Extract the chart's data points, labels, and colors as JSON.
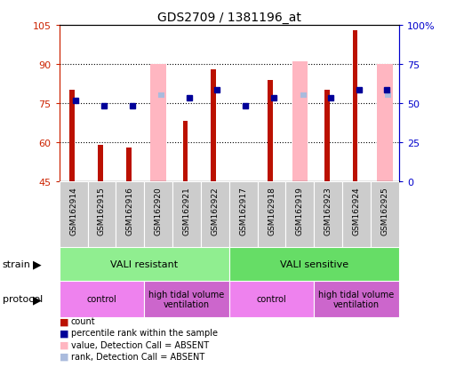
{
  "title": "GDS2709 / 1381196_at",
  "samples": [
    "GSM162914",
    "GSM162915",
    "GSM162916",
    "GSM162920",
    "GSM162921",
    "GSM162922",
    "GSM162917",
    "GSM162918",
    "GSM162919",
    "GSM162923",
    "GSM162924",
    "GSM162925"
  ],
  "count_values": [
    80,
    59,
    58,
    45,
    68,
    88,
    45,
    84,
    45,
    80,
    103,
    45
  ],
  "rank_values": [
    76,
    74,
    74,
    45,
    77,
    80,
    74,
    77,
    45,
    77,
    80,
    80
  ],
  "absent_value_bars": [
    false,
    false,
    false,
    true,
    false,
    false,
    false,
    false,
    true,
    false,
    false,
    true
  ],
  "absent_value_heights": [
    45,
    45,
    45,
    90,
    45,
    45,
    45,
    45,
    91,
    45,
    45,
    90
  ],
  "absent_rank_markers": [
    false,
    false,
    false,
    true,
    false,
    false,
    false,
    false,
    true,
    false,
    false,
    true
  ],
  "absent_rank_values": [
    45,
    45,
    45,
    78,
    45,
    45,
    45,
    45,
    78,
    45,
    45,
    78
  ],
  "ylim": [
    45,
    105
  ],
  "yticks_left": [
    45,
    60,
    75,
    90,
    105
  ],
  "strain_groups": [
    {
      "label": "VALI resistant",
      "start": 0,
      "end": 6,
      "color": "#90EE90"
    },
    {
      "label": "VALI sensitive",
      "start": 6,
      "end": 12,
      "color": "#66DD66"
    }
  ],
  "protocol_groups": [
    {
      "label": "control",
      "start": 0,
      "end": 3,
      "color": "#EE82EE"
    },
    {
      "label": "high tidal volume\nventilation",
      "start": 3,
      "end": 6,
      "color": "#CC66CC"
    },
    {
      "label": "control",
      "start": 6,
      "end": 9,
      "color": "#EE82EE"
    },
    {
      "label": "high tidal volume\nventilation",
      "start": 9,
      "end": 12,
      "color": "#CC66CC"
    }
  ],
  "count_color": "#BB1100",
  "rank_color": "#000099",
  "absent_value_color": "#FFB6C1",
  "absent_rank_color": "#AABBDD",
  "bg_color": "#ffffff",
  "left_axis_color": "#CC2200",
  "right_axis_color": "#0000CC",
  "legend_items": [
    {
      "label": "count",
      "color": "#BB1100"
    },
    {
      "label": "percentile rank within the sample",
      "color": "#000099"
    },
    {
      "label": "value, Detection Call = ABSENT",
      "color": "#FFB6C1"
    },
    {
      "label": "rank, Detection Call = ABSENT",
      "color": "#AABBDD"
    }
  ]
}
